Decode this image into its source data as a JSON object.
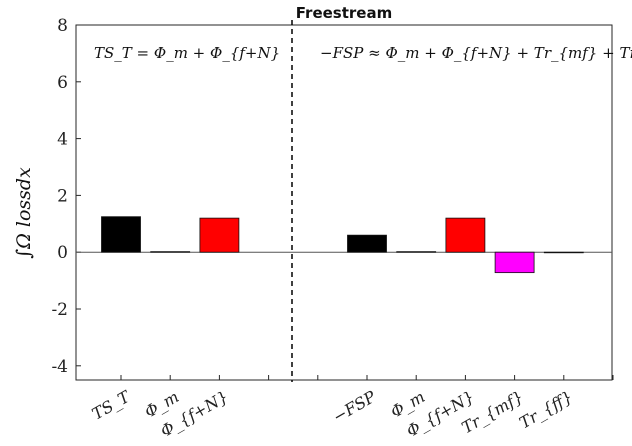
{
  "chart_data": {
    "type": "bar",
    "title": "Freestream",
    "ylabel": "∫Ω lossdx",
    "xlabel": "",
    "ylim": [
      -4.5,
      8
    ],
    "yticks": [
      -4,
      -2,
      0,
      2,
      4,
      6,
      8
    ],
    "ytick_labels": [
      "-4",
      "-2",
      "0",
      "2",
      "4",
      "6",
      "8"
    ],
    "grid": false,
    "divider": "dashed vertical line",
    "annotations": [
      {
        "text": "TS_T = Φ_m + Φ_{f+N}"
      },
      {
        "text": "−FSP ≈ Φ_m + Φ_{f+N} + Tr_{mf} + Tr_{ff}"
      }
    ],
    "categories": [
      "TS_T",
      "Φ_m",
      "Φ_{f+N}",
      "",
      "",
      "−FSP",
      "Φ_m",
      "Φ_{f+N}",
      "Tr_{mf}",
      "Tr_{ff}",
      ""
    ],
    "values": [
      1.25,
      0.02,
      1.2,
      null,
      null,
      0.6,
      0.02,
      1.2,
      -0.72,
      0.0,
      null
    ],
    "colors": [
      "#000000",
      "#000000",
      "#ff0000",
      null,
      null,
      "#000000",
      "#000000",
      "#ff0000",
      "#ff00ff",
      "#000000",
      null
    ]
  }
}
